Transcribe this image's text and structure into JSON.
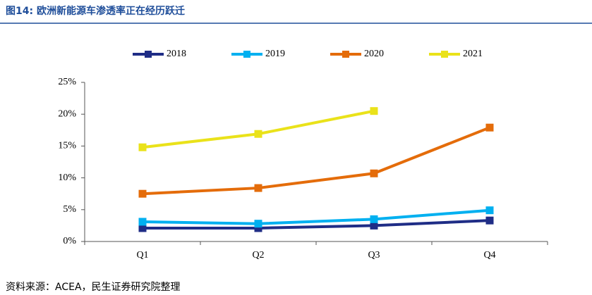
{
  "chart_data": {
    "type": "line",
    "title": "图14: 欧洲新能源车渗透率正在经历跃迁",
    "source": "资料来源：ACEA，民生证券研究院整理",
    "categories": [
      "Q1",
      "Q2",
      "Q3",
      "Q4"
    ],
    "series": [
      {
        "name": "2018",
        "color": "#1f2d86",
        "values": [
          2.1,
          2.1,
          2.5,
          3.3
        ]
      },
      {
        "name": "2019",
        "color": "#00b0f0",
        "values": [
          3.1,
          2.8,
          3.5,
          4.9
        ]
      },
      {
        "name": "2020",
        "color": "#e46c0a",
        "values": [
          7.5,
          8.4,
          10.7,
          17.9
        ]
      },
      {
        "name": "2021",
        "color": "#eae21a",
        "values": [
          14.8,
          16.9,
          20.5,
          null
        ]
      }
    ],
    "ylim": [
      0,
      25
    ],
    "yticks": [
      {
        "value": 0,
        "label": "0%"
      },
      {
        "value": 5,
        "label": "5%"
      },
      {
        "value": 10,
        "label": "10%"
      },
      {
        "value": 15,
        "label": "15%"
      },
      {
        "value": 20,
        "label": "20%"
      },
      {
        "value": 25,
        "label": "25%"
      }
    ],
    "grid": false,
    "legend": "top"
  }
}
